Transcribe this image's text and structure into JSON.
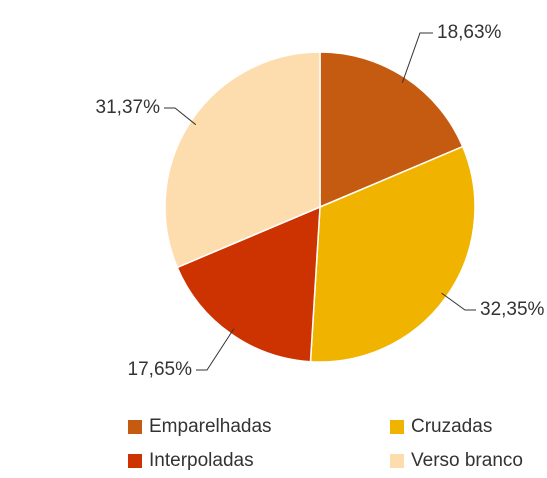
{
  "chart_data": {
    "type": "pie",
    "categories": [
      "Emparelhadas",
      "Cruzadas",
      "Interpoladas",
      "Verso branco"
    ],
    "values": [
      18.63,
      32.35,
      17.65,
      31.37
    ],
    "value_labels": [
      "18,63%",
      "32,35%",
      "17,65%",
      "31,37%"
    ],
    "colors": [
      "#c55a11",
      "#f0b400",
      "#cc3300",
      "#fddcae"
    ],
    "legend": "bottom"
  }
}
